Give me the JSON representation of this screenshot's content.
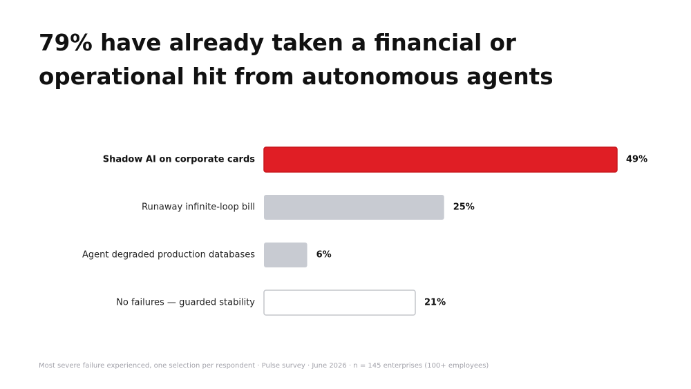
{
  "title": {
    "line1": "79% have already taken a financial or",
    "line2": "operational hit from autonomous agents"
  },
  "footnote": "Most severe failure experienced, one selection per respondent · Pulse survey · June 2026 · n = 145 enterprises (100+ employees)",
  "colors": {
    "highlight": "#e01e25",
    "highlight_border": "#c8161c",
    "neutral": "#c8cbd2",
    "outline_fill": "#ffffff",
    "outline_border": "#c3c5ca",
    "label": "#222222",
    "value": "#111111"
  },
  "chart_data": {
    "type": "bar",
    "orientation": "horizontal",
    "unit": "%",
    "xlim": [
      0,
      49
    ],
    "categories": [
      "Shadow AI on corporate cards",
      "Runaway infinite-loop bill",
      "Agent degraded production databases",
      "No failures — guarded stability"
    ],
    "values": [
      49,
      25,
      6,
      21
    ],
    "value_labels": [
      "49%",
      "25%",
      "6%",
      "21%"
    ],
    "styles": [
      "highlight",
      "neutral",
      "neutral",
      "outline"
    ],
    "grid": false,
    "legend": "none"
  }
}
